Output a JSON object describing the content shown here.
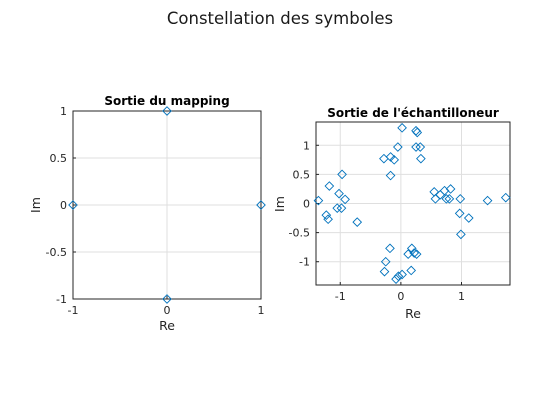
{
  "figure": {
    "title": "Constellation des symboles"
  },
  "chart_data": [
    {
      "type": "scatter",
      "title": "Sortie du mapping",
      "xlabel": "Re",
      "ylabel": "Im",
      "xlim": [
        -1,
        1
      ],
      "ylim": [
        -1,
        1
      ],
      "xticks": [
        -1,
        0,
        1
      ],
      "xtick_labels": [
        "-1",
        "0",
        "1"
      ],
      "yticks": [
        -1,
        -0.5,
        0,
        0.5,
        1
      ],
      "ytick_labels": [
        "-1",
        "-0.5",
        "0",
        "0.5",
        "1"
      ],
      "grid": true,
      "marker": "diamond",
      "color": "#0072bd",
      "points": [
        [
          0,
          1
        ],
        [
          -1,
          0
        ],
        [
          1,
          0
        ],
        [
          0,
          -1
        ]
      ]
    },
    {
      "type": "scatter",
      "title": "Sortie de l'échantilloneur",
      "xlabel": "Re",
      "ylabel": "Im",
      "xlim": [
        -1.4,
        1.8
      ],
      "ylim": [
        -1.4,
        1.4
      ],
      "xticks": [
        -1,
        0,
        1
      ],
      "xtick_labels": [
        "-1",
        "0",
        "1"
      ],
      "yticks": [
        -1,
        -0.5,
        0,
        0.5,
        1
      ],
      "ytick_labels": [
        "-1",
        "-0.5",
        "0",
        "0.5",
        "1"
      ],
      "grid": true,
      "marker": "diamond",
      "color": "#0072bd",
      "points": [
        [
          0.02,
          1.3
        ],
        [
          0.25,
          1.25
        ],
        [
          0.27,
          1.22
        ],
        [
          -0.05,
          0.97
        ],
        [
          0.25,
          0.97
        ],
        [
          0.32,
          0.97
        ],
        [
          -0.28,
          0.77
        ],
        [
          -0.17,
          0.8
        ],
        [
          -0.11,
          0.75
        ],
        [
          0.33,
          0.77
        ],
        [
          -0.97,
          0.5
        ],
        [
          -0.17,
          0.48
        ],
        [
          -1.18,
          0.3
        ],
        [
          -1.02,
          0.17
        ],
        [
          -0.92,
          0.07
        ],
        [
          -1.36,
          0.05
        ],
        [
          -1.05,
          -0.08
        ],
        [
          -0.98,
          -0.08
        ],
        [
          -1.23,
          -0.2
        ],
        [
          -1.2,
          -0.27
        ],
        [
          -0.72,
          -0.32
        ],
        [
          0.55,
          0.2
        ],
        [
          0.65,
          0.15
        ],
        [
          0.72,
          0.22
        ],
        [
          0.82,
          0.25
        ],
        [
          0.57,
          0.08
        ],
        [
          0.75,
          0.08
        ],
        [
          0.8,
          0.08
        ],
        [
          0.98,
          0.08
        ],
        [
          1.43,
          0.05
        ],
        [
          1.73,
          0.1
        ],
        [
          0.97,
          -0.17
        ],
        [
          1.12,
          -0.25
        ],
        [
          0.99,
          -0.53
        ],
        [
          -0.18,
          -0.77
        ],
        [
          0.18,
          -0.77
        ],
        [
          0.22,
          -0.85
        ],
        [
          0.12,
          -0.87
        ],
        [
          0.26,
          -0.87
        ],
        [
          -0.25,
          -1.0
        ],
        [
          -0.27,
          -1.17
        ],
        [
          0.17,
          -1.15
        ],
        [
          0.02,
          -1.22
        ],
        [
          -0.04,
          -1.25
        ],
        [
          -0.08,
          -1.3
        ]
      ]
    }
  ]
}
